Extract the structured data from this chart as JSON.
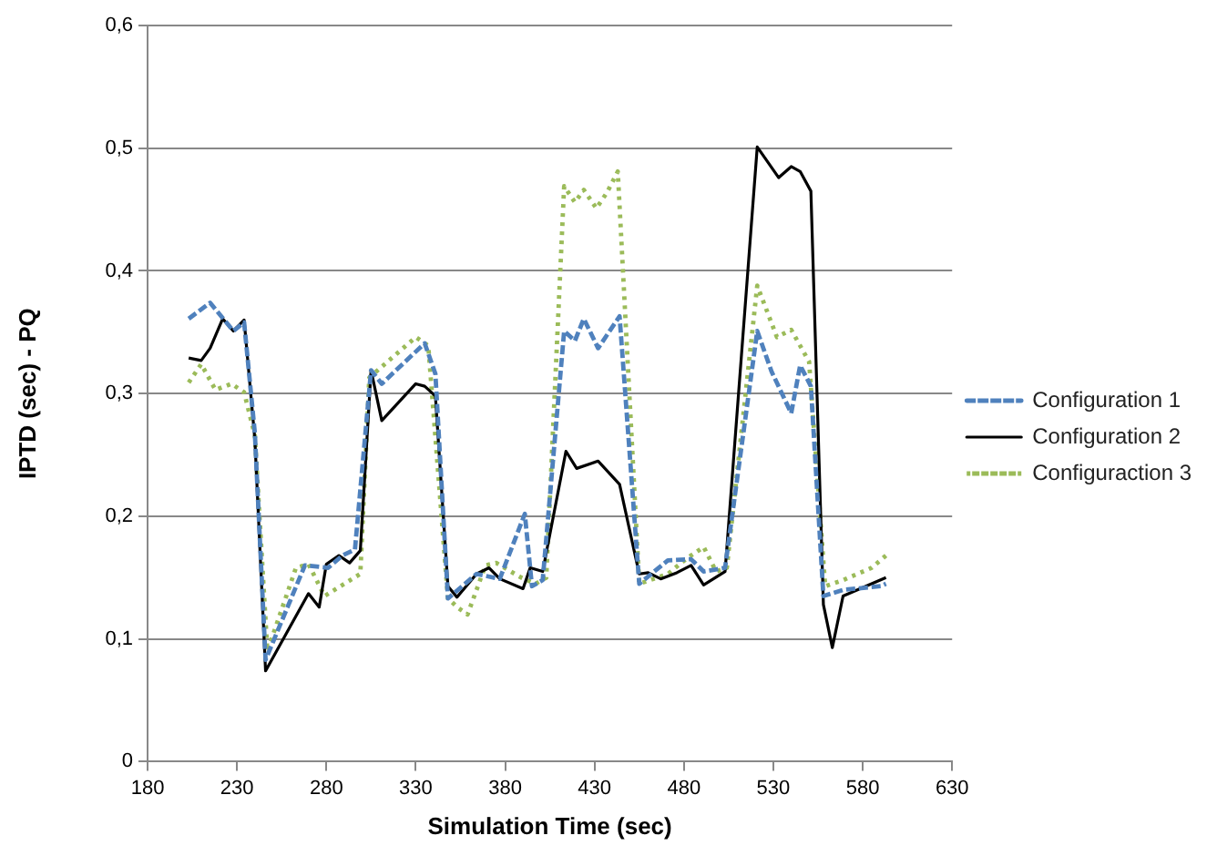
{
  "chart_data": {
    "type": "line",
    "xlabel": "Simulation Time (sec)",
    "ylabel": "IPTD (sec) - PQ",
    "xlim": [
      180,
      630
    ],
    "xticks": [
      180,
      230,
      280,
      330,
      380,
      430,
      480,
      530,
      580,
      630
    ],
    "ylim": [
      0,
      0.6
    ],
    "yticks": [
      {
        "value": 0,
        "label": "0"
      },
      {
        "value": 0.1,
        "label": "0,1"
      },
      {
        "value": 0.2,
        "label": "0,2"
      },
      {
        "value": 0.3,
        "label": "0,3"
      },
      {
        "value": 0.4,
        "label": "0,4"
      },
      {
        "value": 0.5,
        "label": "0,5"
      },
      {
        "value": 0.6,
        "label": "0,6"
      }
    ],
    "grid": "y",
    "legend": "right",
    "marker": "none",
    "series": [
      {
        "name": "Configuration 1",
        "color": "#4f81bd",
        "line_style": "dashed",
        "x": [
          203,
          215,
          228,
          234,
          240,
          246,
          268,
          281,
          289,
          296,
          305,
          311,
          335,
          341,
          348,
          364,
          377,
          391,
          395,
          401,
          413,
          419,
          424,
          432,
          444,
          455,
          471,
          484,
          491,
          503,
          521,
          529,
          540,
          545,
          551,
          558,
          569,
          590,
          593
        ],
        "values": [
          0.361,
          0.374,
          0.351,
          0.358,
          0.268,
          0.083,
          0.16,
          0.158,
          0.168,
          0.173,
          0.319,
          0.308,
          0.341,
          0.316,
          0.133,
          0.153,
          0.149,
          0.202,
          0.143,
          0.148,
          0.351,
          0.343,
          0.361,
          0.337,
          0.363,
          0.145,
          0.164,
          0.165,
          0.155,
          0.158,
          0.351,
          0.318,
          0.284,
          0.323,
          0.306,
          0.135,
          0.14,
          0.143,
          0.145
        ]
      },
      {
        "name": "Configuration 2",
        "color": "#000000",
        "line_style": "solid",
        "x": [
          203,
          210,
          215,
          222,
          228,
          234,
          240,
          246,
          270,
          276,
          280,
          287,
          293,
          299,
          305,
          311,
          330,
          335,
          341,
          348,
          353,
          364,
          371,
          377,
          390,
          394,
          401,
          414,
          420,
          432,
          444,
          455,
          460,
          467,
          476,
          484,
          491,
          503,
          521,
          533,
          540,
          545,
          551,
          558,
          563,
          569,
          593
        ],
        "values": [
          0.329,
          0.327,
          0.337,
          0.361,
          0.351,
          0.36,
          0.263,
          0.074,
          0.137,
          0.126,
          0.161,
          0.168,
          0.162,
          0.172,
          0.319,
          0.278,
          0.308,
          0.306,
          0.298,
          0.143,
          0.134,
          0.153,
          0.158,
          0.149,
          0.141,
          0.158,
          0.155,
          0.253,
          0.239,
          0.245,
          0.226,
          0.153,
          0.154,
          0.149,
          0.154,
          0.16,
          0.144,
          0.155,
          0.501,
          0.476,
          0.485,
          0.481,
          0.465,
          0.128,
          0.093,
          0.135,
          0.15
        ]
      },
      {
        "name": "Configuraction 3",
        "color": "#9bbb59",
        "line_style": "dotted",
        "x": [
          203,
          210,
          218,
          227,
          234,
          240,
          247,
          263,
          270,
          279,
          299,
          304,
          330,
          337,
          348,
          354,
          359,
          369,
          375,
          389,
          397,
          403,
          413,
          419,
          424,
          431,
          437,
          443,
          455,
          471,
          481,
          491,
          498,
          504,
          521,
          532,
          540,
          550,
          559,
          569,
          585,
          593
        ],
        "values": [
          0.309,
          0.324,
          0.303,
          0.308,
          0.301,
          0.266,
          0.09,
          0.158,
          0.161,
          0.135,
          0.153,
          0.313,
          0.346,
          0.339,
          0.133,
          0.125,
          0.12,
          0.16,
          0.162,
          0.15,
          0.145,
          0.15,
          0.469,
          0.456,
          0.466,
          0.451,
          0.464,
          0.481,
          0.145,
          0.153,
          0.165,
          0.175,
          0.155,
          0.158,
          0.388,
          0.346,
          0.352,
          0.326,
          0.143,
          0.148,
          0.158,
          0.168
        ]
      }
    ]
  }
}
